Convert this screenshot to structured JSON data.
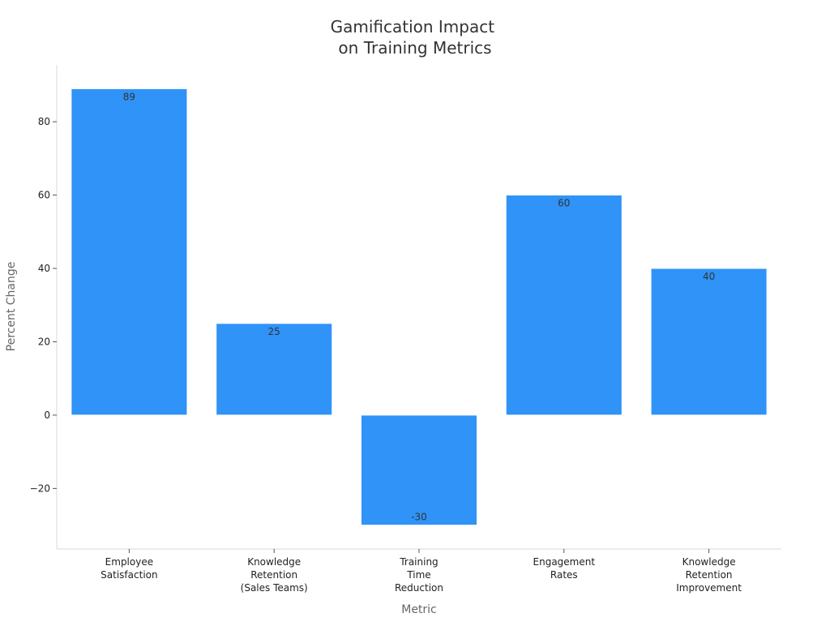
{
  "chart_data": {
    "type": "bar",
    "title": [
      "Gamification Impact",
      "on Training Metrics"
    ],
    "xlabel": "Metric",
    "ylabel": "Percent Change",
    "categories": [
      [
        "Employee",
        "Satisfaction"
      ],
      [
        "Knowledge",
        "Retention",
        "(Sales Teams)"
      ],
      [
        "Training",
        "Time",
        "Reduction"
      ],
      [
        "Engagement",
        "Rates"
      ],
      [
        "Knowledge",
        "Retention",
        "Improvement"
      ]
    ],
    "values": [
      89,
      25,
      -30,
      60,
      40
    ],
    "data_labels": [
      "89",
      "25",
      "-30",
      "60",
      "40"
    ],
    "yticks": [
      -20,
      0,
      20,
      40,
      60,
      80
    ],
    "ytick_labels": [
      "−20",
      "0",
      "20",
      "40",
      "60",
      "80"
    ],
    "ylim": [
      -36.5,
      95.5
    ],
    "grid": false,
    "colors": {
      "bar": "#2f93f7",
      "bar_edge": "#ffffff",
      "axis": "#d9d9d9",
      "tick": "#555555"
    }
  }
}
